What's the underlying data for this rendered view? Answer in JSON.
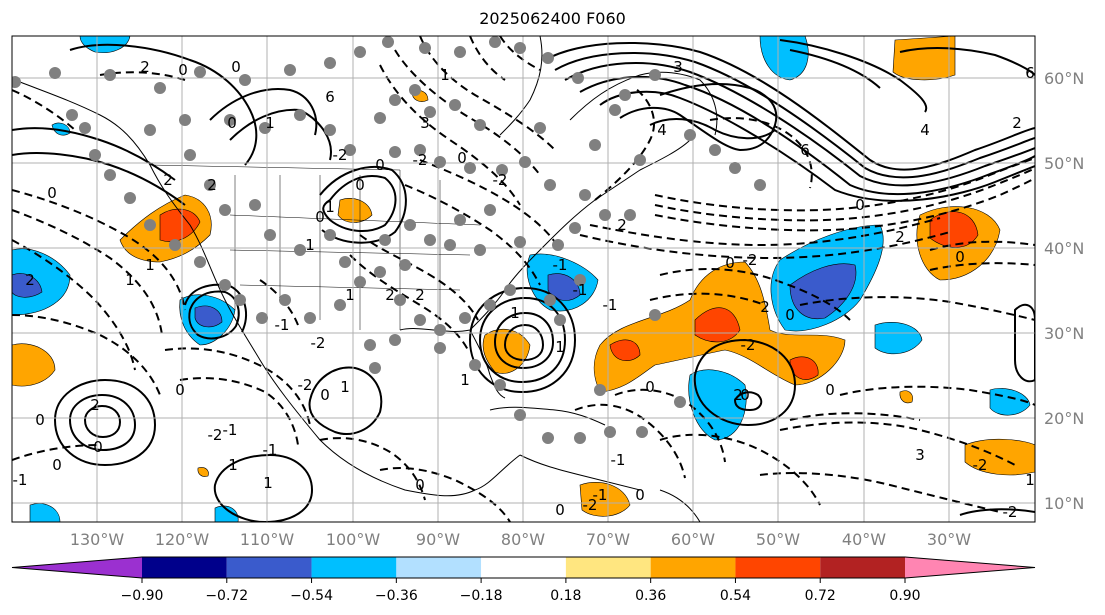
{
  "title": "2025062400 F060",
  "map": {
    "lon_labels": [
      "130°W",
      "120°W",
      "110°W",
      "100°W",
      "90°W",
      "80°W",
      "70°W",
      "60°W",
      "50°W",
      "40°W",
      "30°W"
    ],
    "lat_labels": [
      "60°N",
      "50°N",
      "40°N",
      "30°N",
      "20°N",
      "10°N"
    ],
    "contour_labels": [
      "1",
      "2",
      "2",
      "0",
      "0",
      "0",
      "3",
      "1",
      "3",
      "2",
      "6",
      "4",
      "4",
      "6",
      "2",
      "0",
      "6",
      "0",
      "1",
      "1",
      "2",
      "2",
      "1",
      "1",
      "2",
      "0",
      "0",
      "0",
      "-2",
      "0",
      "-2",
      "-2",
      "0",
      "1",
      "-1",
      "-2",
      "1",
      "1",
      "0",
      "2",
      "0",
      "2",
      "-1",
      "1",
      "0",
      "-1",
      "0",
      "-1",
      "-2",
      "0",
      "2",
      "0",
      "2",
      "2",
      "0",
      "3",
      "1",
      "-2",
      "-2",
      "-2",
      "-2",
      "0",
      "-2",
      "0",
      "-2",
      "0",
      "1",
      "-1",
      "-1",
      "-1",
      "1",
      "1",
      "0",
      "0",
      "-1",
      "0",
      "-1"
    ],
    "feature_colors": {
      "purple": "#9b30d0",
      "navy": "#00008b",
      "royal_blue": "#3a5bcc",
      "deep_sky": "#00bfff",
      "light_blue": "#b2e0ff",
      "white": "#ffffff",
      "light_yellow": "#ffe680",
      "orange": "#ffa500",
      "orange_red": "#ff4500",
      "firebrick": "#b22222",
      "pink": "#ff85b2",
      "dots": "#808080",
      "contours": "#000000",
      "grid": "#b0b0b0"
    }
  },
  "colorbar": {
    "colors": [
      "#9b30d0",
      "#00008b",
      "#3a5bcc",
      "#00bfff",
      "#b2e0ff",
      "#ffffff",
      "#ffe680",
      "#ffa500",
      "#ff4500",
      "#b22222",
      "#ff85b2"
    ],
    "tick_labels": [
      "−0.90",
      "−0.72",
      "−0.54",
      "−0.36",
      "−0.18",
      "0.18",
      "0.36",
      "0.54",
      "0.72",
      "0.90"
    ]
  }
}
